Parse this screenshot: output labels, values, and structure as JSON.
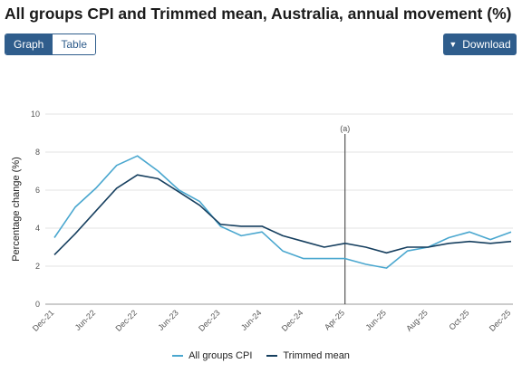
{
  "header": {
    "title": "All groups CPI and Trimmed mean, Australia, annual movement (%)"
  },
  "view_toggle": {
    "graph_label": "Graph",
    "table_label": "Table"
  },
  "download": {
    "label": "Download",
    "icon": "chevron-down-icon"
  },
  "colors": {
    "accent": "#2f5d8c",
    "all_groups": "#4aa7cf",
    "trimmed": "#163f5f"
  },
  "chart_data": {
    "type": "line",
    "ylabel": "Percentage change (%)",
    "ylim": [
      0,
      10
    ],
    "yticks": [
      0,
      2,
      4,
      6,
      8,
      10
    ],
    "x": [
      "Dec-21",
      "Mar-22",
      "Jun-22",
      "Sep-22",
      "Dec-22",
      "Mar-23",
      "Jun-23",
      "Sep-23",
      "Dec-23",
      "Mar-24",
      "Jun-24",
      "Sep-24",
      "Dec-24",
      "Mar-25",
      "Apr-25",
      "May-25",
      "Jun-25",
      "Jul-25",
      "Aug-25",
      "Sep-25",
      "Oct-25",
      "Nov-25",
      "Dec-25"
    ],
    "x_tick_labels": [
      "Dec-21",
      "Jun-22",
      "Dec-22",
      "Jun-23",
      "Dec-23",
      "Jun-24",
      "Dec-24",
      "Apr-25",
      "Jun-25",
      "Aug-25",
      "Oct-25",
      "Dec-25"
    ],
    "series": [
      {
        "name": "All groups CPI",
        "values": [
          3.5,
          5.1,
          6.1,
          7.3,
          7.8,
          7.0,
          6.0,
          5.4,
          4.1,
          3.6,
          3.8,
          2.8,
          2.4,
          2.4,
          2.4,
          2.1,
          1.9,
          2.8,
          3.0,
          3.5,
          3.8,
          3.4,
          3.8
        ]
      },
      {
        "name": "Trimmed mean",
        "values": [
          2.6,
          3.7,
          4.9,
          6.1,
          6.8,
          6.6,
          5.9,
          5.2,
          4.2,
          4.1,
          4.1,
          3.6,
          3.3,
          3.0,
          3.2,
          3.0,
          2.7,
          3.0,
          3.0,
          3.2,
          3.3,
          3.2,
          3.3
        ]
      }
    ],
    "annotation": {
      "label": "(a)",
      "x": "Apr-25"
    },
    "grid": true,
    "legend_position": "bottom"
  }
}
